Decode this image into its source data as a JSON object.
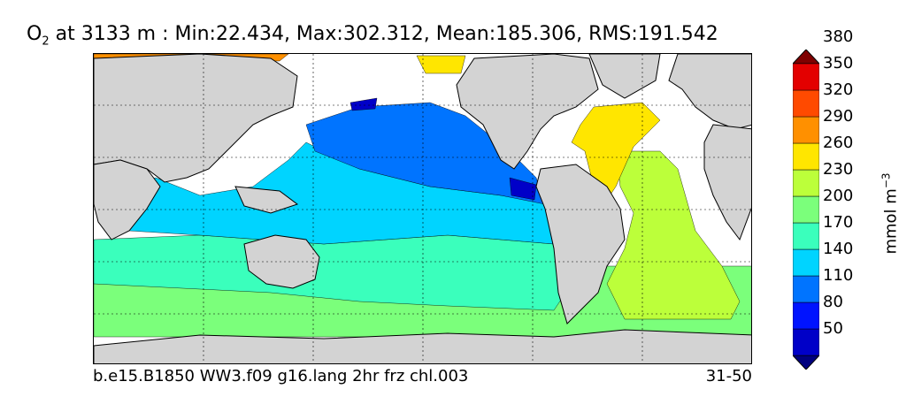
{
  "title": {
    "variable_main": "O",
    "variable_sub": "2",
    "rest": " at 3133 m : Min:22.434, Max:302.312, Mean:185.306, RMS:191.542"
  },
  "caption": {
    "case_name": "b.e15.B1850 WW3.f09 g16.lang 2hr frz chl.003",
    "years": "31-50"
  },
  "colorbar": {
    "unit_main": "mmol m",
    "unit_sup": "−3",
    "ticks": [
      "50",
      "80",
      "110",
      "140",
      "170",
      "200",
      "230",
      "260",
      "290",
      "320",
      "350",
      "380"
    ],
    "colors": [
      "#00007f",
      "#0000c8",
      "#0013ff",
      "#0074ff",
      "#00d4ff",
      "#3affbc",
      "#7bff7b",
      "#bcff3a",
      "#ffe600",
      "#ff9000",
      "#ff4a00",
      "#e30000",
      "#7f0000"
    ]
  },
  "map_colors": {
    "land": "#d3d3d3",
    "missing": "#ffffff",
    "c80": "#0000c8",
    "c110": "#0074ff",
    "c140": "#00d4ff",
    "c170": "#3affbc",
    "c200": "#7bff7b",
    "c230": "#bcff3a",
    "c260": "#ffe600",
    "c290": "#ff9000"
  }
}
